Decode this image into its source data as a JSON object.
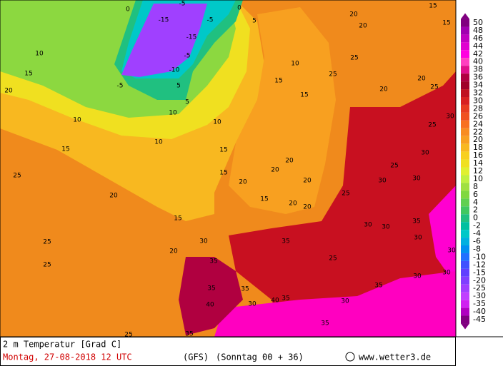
{
  "map": {
    "labels": [
      10,
      15,
      20,
      10,
      15,
      25,
      20,
      15,
      20,
      25,
      25,
      30,
      35,
      35,
      40,
      30,
      35,
      25,
      10,
      10,
      10,
      10,
      15,
      15,
      25,
      25,
      20,
      20,
      15,
      15,
      20,
      25,
      20,
      30,
      25,
      25,
      30,
      30,
      30,
      25,
      30,
      30,
      35,
      30,
      30,
      30,
      30,
      35,
      30,
      35,
      35,
      40,
      35,
      25,
      35,
      20,
      20,
      15,
      20,
      20,
      20,
      20,
      15,
      15,
      -15,
      -15,
      -5,
      -10,
      -5,
      -5,
      -5,
      5,
      5,
      0,
      5,
      0
    ],
    "scale": {
      "levels": [
        50,
        48,
        46,
        44,
        42,
        40,
        38,
        36,
        34,
        32,
        30,
        28,
        26,
        24,
        22,
        20,
        18,
        16,
        14,
        12,
        10,
        8,
        6,
        4,
        2,
        0,
        -2,
        -4,
        -6,
        -8,
        -10,
        -12,
        -15,
        -20,
        -25,
        -30,
        -35,
        -40,
        -45
      ],
      "colors": [
        "#800080",
        "#a000b0",
        "#c000c0",
        "#e000d0",
        "#ff00e0",
        "#ff40c0",
        "#e0108a",
        "#b00040",
        "#a00028",
        "#c01020",
        "#d82020",
        "#e83c20",
        "#f05020",
        "#f87020",
        "#f88c20",
        "#f8a020",
        "#f8b820",
        "#f8d020",
        "#f0e020",
        "#e0f030",
        "#c0f040",
        "#a0e040",
        "#80d840",
        "#60d050",
        "#40c860",
        "#20c080",
        "#00c0a0",
        "#00c8c8",
        "#00b0e0",
        "#0090f0",
        "#2070ff",
        "#4050ff",
        "#6040ff",
        "#8040ff",
        "#a040ff",
        "#c040ff",
        "#d020f0",
        "#b000c0",
        "#800080"
      ]
    }
  },
  "footer": {
    "variable": "2 m Temperatur [Grad C]",
    "date": "Montag, 27-08-2018  12 UTC",
    "model": "(GFS)",
    "run": "(Sonntag 00 + 36)",
    "site": "www.wetter3.de"
  }
}
